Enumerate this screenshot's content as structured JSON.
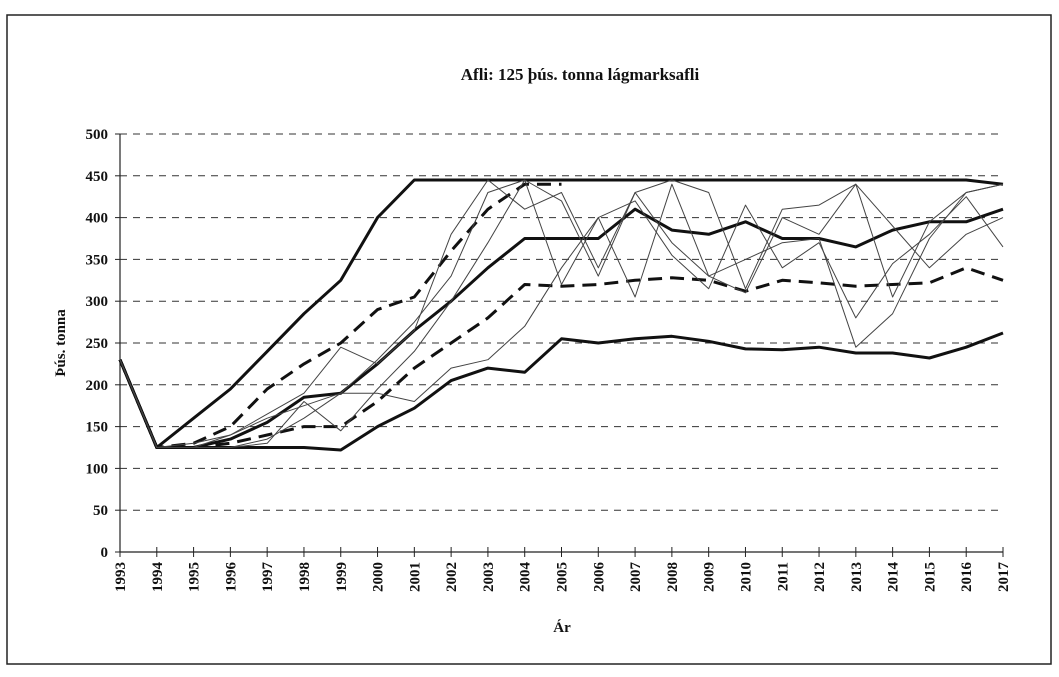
{
  "chart_data": {
    "type": "line",
    "title": "Afli: 125 þús. tonna lágmarksafli",
    "y_label": "Þús. tonna",
    "x_label": "Ár",
    "categories": [
      "1993",
      "1994",
      "1995",
      "1996",
      "1997",
      "1998",
      "1999",
      "2000",
      "2001",
      "2002",
      "2003",
      "2004",
      "2005",
      "2006",
      "2007",
      "2008",
      "2009",
      "2010",
      "2011",
      "2012",
      "2013",
      "2014",
      "2015",
      "2016",
      "2017"
    ],
    "ylim": [
      0,
      500
    ],
    "yticks": [
      0,
      50,
      100,
      150,
      200,
      250,
      300,
      350,
      400,
      450,
      500
    ],
    "grid": true,
    "series": [
      {
        "color": "#111",
        "width": 3,
        "dash": "none",
        "values": [
          230,
          125,
          160,
          195,
          240,
          285,
          325,
          400,
          445,
          445,
          445,
          445,
          445,
          445,
          445,
          445,
          445,
          445,
          445,
          445,
          445,
          445,
          445,
          445,
          440
        ]
      },
      {
        "color": "#111",
        "width": 3,
        "dash": "none",
        "values": [
          230,
          125,
          125,
          125,
          125,
          125,
          122,
          150,
          172,
          205,
          220,
          215,
          255,
          250,
          255,
          258,
          252,
          243,
          242,
          245,
          238,
          238,
          232,
          245,
          262
        ]
      },
      {
        "color": "#111",
        "width": 3,
        "dash": "none",
        "values": [
          230,
          125,
          125,
          135,
          155,
          185,
          190,
          225,
          265,
          300,
          340,
          375,
          375,
          375,
          410,
          385,
          380,
          395,
          375,
          375,
          365,
          385,
          395,
          395,
          410
        ]
      },
      {
        "color": "#111",
        "width": 3,
        "dash": "14 8",
        "values": [
          230,
          125,
          130,
          150,
          195,
          225,
          250,
          290,
          305,
          360,
          410,
          440,
          440,
          null,
          null,
          null,
          null,
          null,
          null,
          null,
          null,
          null,
          null,
          null,
          null
        ]
      },
      {
        "color": "#111",
        "width": 3,
        "dash": "14 8",
        "values": [
          230,
          125,
          125,
          130,
          140,
          150,
          150,
          180,
          220,
          250,
          280,
          320,
          318,
          320,
          325,
          328,
          325,
          312,
          325,
          322,
          318,
          320,
          322,
          340,
          325
        ]
      },
      {
        "color": "#444",
        "width": 1,
        "dash": "none",
        "values": [
          230,
          125,
          125,
          140,
          160,
          175,
          190,
          230,
          275,
          330,
          430,
          445,
          420,
          330,
          430,
          445,
          430,
          315,
          410,
          415,
          440,
          305,
          395,
          430,
          440
        ]
      },
      {
        "color": "#444",
        "width": 1,
        "dash": "none",
        "values": [
          230,
          125,
          125,
          125,
          130,
          180,
          145,
          195,
          240,
          300,
          370,
          445,
          320,
          400,
          420,
          355,
          315,
          415,
          340,
          370,
          280,
          345,
          380,
          425,
          365
        ]
      },
      {
        "color": "#444",
        "width": 1,
        "dash": "none",
        "values": [
          230,
          125,
          125,
          125,
          135,
          160,
          190,
          190,
          180,
          220,
          230,
          270,
          340,
          400,
          305,
          440,
          330,
          350,
          370,
          375,
          245,
          285,
          375,
          430,
          440
        ]
      },
      {
        "color": "#444",
        "width": 1,
        "dash": "none",
        "values": [
          230,
          125,
          130,
          140,
          165,
          190,
          245,
          225,
          265,
          380,
          445,
          410,
          430,
          340,
          430,
          370,
          330,
          310,
          400,
          380,
          440,
          390,
          340,
          380,
          400
        ]
      }
    ]
  }
}
